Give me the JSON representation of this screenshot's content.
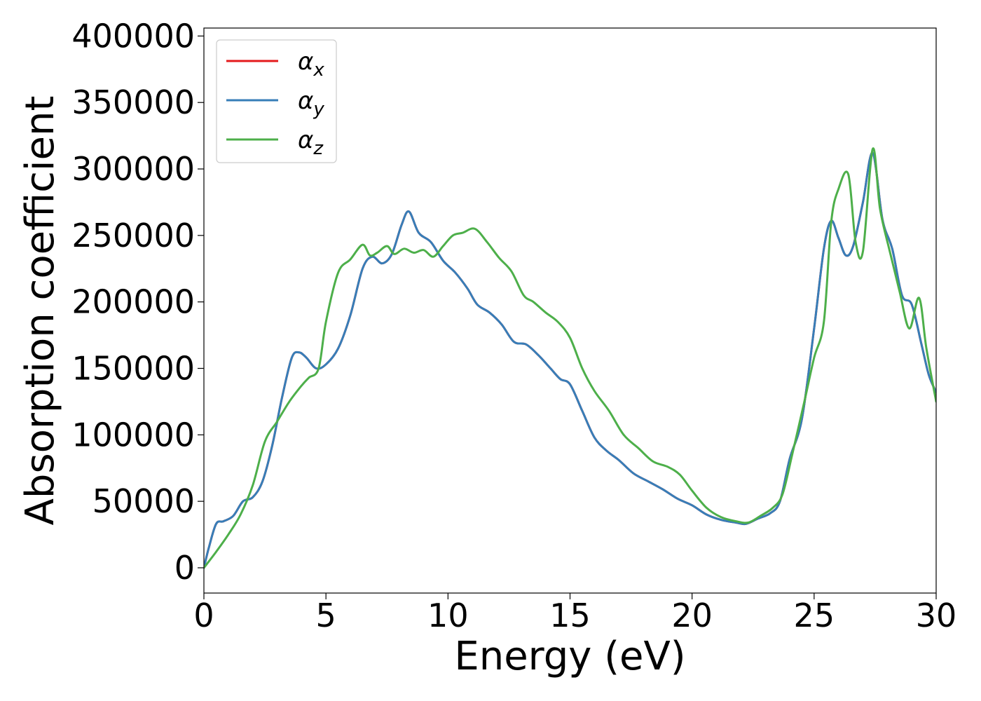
{
  "chart_data": {
    "type": "line",
    "xlabel": "Energy (eV)",
    "ylabel": "Absorption coefficient",
    "xlim": [
      0,
      30
    ],
    "ylim": [
      -19000,
      406000
    ],
    "xticks": [
      0,
      5,
      10,
      15,
      20,
      25,
      30
    ],
    "yticks": [
      0,
      50000,
      100000,
      150000,
      200000,
      250000,
      300000,
      350000,
      400000
    ],
    "grid": false,
    "legend": "top-left",
    "series": [
      {
        "name": "αx",
        "base": "α",
        "sub": "x",
        "color": "#e41a1c",
        "x": [
          0,
          0.2,
          0.5,
          0.8,
          1.2,
          1.6,
          2.0,
          2.4,
          2.8,
          3.2,
          3.6,
          3.9,
          4.2,
          4.6,
          5.0,
          5.5,
          6.0,
          6.5,
          6.9,
          7.3,
          7.7,
          8.1,
          8.4,
          8.8,
          9.3,
          9.8,
          10.3,
          10.8,
          11.2,
          11.7,
          12.2,
          12.7,
          13.2,
          13.7,
          14.2,
          14.6,
          15.0,
          15.5,
          16.0,
          16.5,
          17.0,
          17.6,
          18.2,
          18.8,
          19.4,
          20.0,
          20.6,
          21.2,
          21.8,
          22.2,
          22.7,
          23.2,
          23.6,
          24.0,
          24.5,
          25.0,
          25.4,
          25.7,
          26.0,
          26.3,
          26.6,
          27.0,
          27.4,
          27.8,
          28.2,
          28.6,
          29.0,
          29.4,
          29.7,
          30.0
        ],
        "y": [
          0,
          15000,
          33000,
          35000,
          39000,
          50000,
          53000,
          65000,
          92000,
          128000,
          158000,
          162000,
          158000,
          150000,
          153000,
          165000,
          190000,
          225000,
          234000,
          229000,
          236000,
          258000,
          268000,
          252000,
          245000,
          231000,
          222000,
          210000,
          198000,
          192000,
          183000,
          170000,
          168000,
          160000,
          150000,
          142000,
          138000,
          118000,
          98000,
          88000,
          81000,
          71000,
          65000,
          59000,
          52000,
          47000,
          40000,
          36000,
          34000,
          33000,
          37000,
          41000,
          50000,
          82000,
          112000,
          180000,
          240000,
          261000,
          248000,
          235000,
          242000,
          275000,
          312000,
          262000,
          240000,
          205000,
          198000,
          168000,
          145000,
          132000
        ]
      },
      {
        "name": "αy",
        "base": "α",
        "sub": "y",
        "color": "#377eb8",
        "x": [
          0,
          0.2,
          0.5,
          0.8,
          1.2,
          1.6,
          2.0,
          2.4,
          2.8,
          3.2,
          3.6,
          3.9,
          4.2,
          4.6,
          5.0,
          5.5,
          6.0,
          6.5,
          6.9,
          7.3,
          7.7,
          8.1,
          8.4,
          8.8,
          9.3,
          9.8,
          10.3,
          10.8,
          11.2,
          11.7,
          12.2,
          12.7,
          13.2,
          13.7,
          14.2,
          14.6,
          15.0,
          15.5,
          16.0,
          16.5,
          17.0,
          17.6,
          18.2,
          18.8,
          19.4,
          20.0,
          20.6,
          21.2,
          21.8,
          22.2,
          22.7,
          23.2,
          23.6,
          24.0,
          24.5,
          25.0,
          25.4,
          25.7,
          26.0,
          26.3,
          26.6,
          27.0,
          27.4,
          27.8,
          28.2,
          28.6,
          29.0,
          29.4,
          29.7,
          30.0
        ],
        "y": [
          0,
          15000,
          33000,
          35000,
          39000,
          50000,
          53000,
          65000,
          92000,
          128000,
          158000,
          162000,
          158000,
          150000,
          153000,
          165000,
          190000,
          225000,
          234000,
          229000,
          236000,
          258000,
          268000,
          252000,
          245000,
          231000,
          222000,
          210000,
          198000,
          192000,
          183000,
          170000,
          168000,
          160000,
          150000,
          142000,
          138000,
          118000,
          98000,
          88000,
          81000,
          71000,
          65000,
          59000,
          52000,
          47000,
          40000,
          36000,
          34000,
          33000,
          37000,
          41000,
          50000,
          82000,
          112000,
          180000,
          240000,
          261000,
          248000,
          235000,
          242000,
          275000,
          312000,
          262000,
          240000,
          205000,
          198000,
          168000,
          145000,
          132000
        ]
      },
      {
        "name": "αz",
        "base": "α",
        "sub": "z",
        "color": "#4daf4a",
        "x": [
          0,
          0.5,
          1.0,
          1.5,
          2.0,
          2.5,
          3.0,
          3.5,
          4.0,
          4.3,
          4.7,
          5.0,
          5.5,
          6.0,
          6.5,
          6.8,
          7.1,
          7.5,
          7.8,
          8.2,
          8.6,
          9.0,
          9.4,
          9.8,
          10.2,
          10.6,
          11.1,
          11.6,
          12.1,
          12.6,
          13.1,
          13.5,
          14.0,
          14.5,
          15.0,
          15.5,
          16.0,
          16.6,
          17.2,
          17.8,
          18.4,
          19.0,
          19.5,
          20.0,
          20.6,
          21.2,
          21.8,
          22.3,
          22.8,
          23.3,
          23.7,
          24.1,
          24.6,
          25.0,
          25.4,
          25.7,
          26.0,
          26.4,
          26.7,
          27.0,
          27.4,
          27.7,
          28.1,
          28.5,
          28.9,
          29.3,
          29.6,
          30.0
        ],
        "y": [
          0,
          12000,
          25000,
          40000,
          62000,
          95000,
          110000,
          125000,
          137000,
          143000,
          150000,
          185000,
          222000,
          232000,
          243000,
          235000,
          237000,
          242000,
          236000,
          240000,
          237000,
          239000,
          234000,
          242000,
          250000,
          252000,
          255000,
          245000,
          233000,
          223000,
          205000,
          200000,
          192000,
          185000,
          173000,
          150000,
          133000,
          118000,
          100000,
          90000,
          80000,
          76000,
          70000,
          58000,
          45000,
          38000,
          35000,
          34000,
          39000,
          45000,
          55000,
          85000,
          125000,
          158000,
          185000,
          260000,
          285000,
          296000,
          245000,
          238000,
          315000,
          270000,
          238000,
          208000,
          180000,
          203000,
          165000,
          125000
        ]
      }
    ]
  }
}
